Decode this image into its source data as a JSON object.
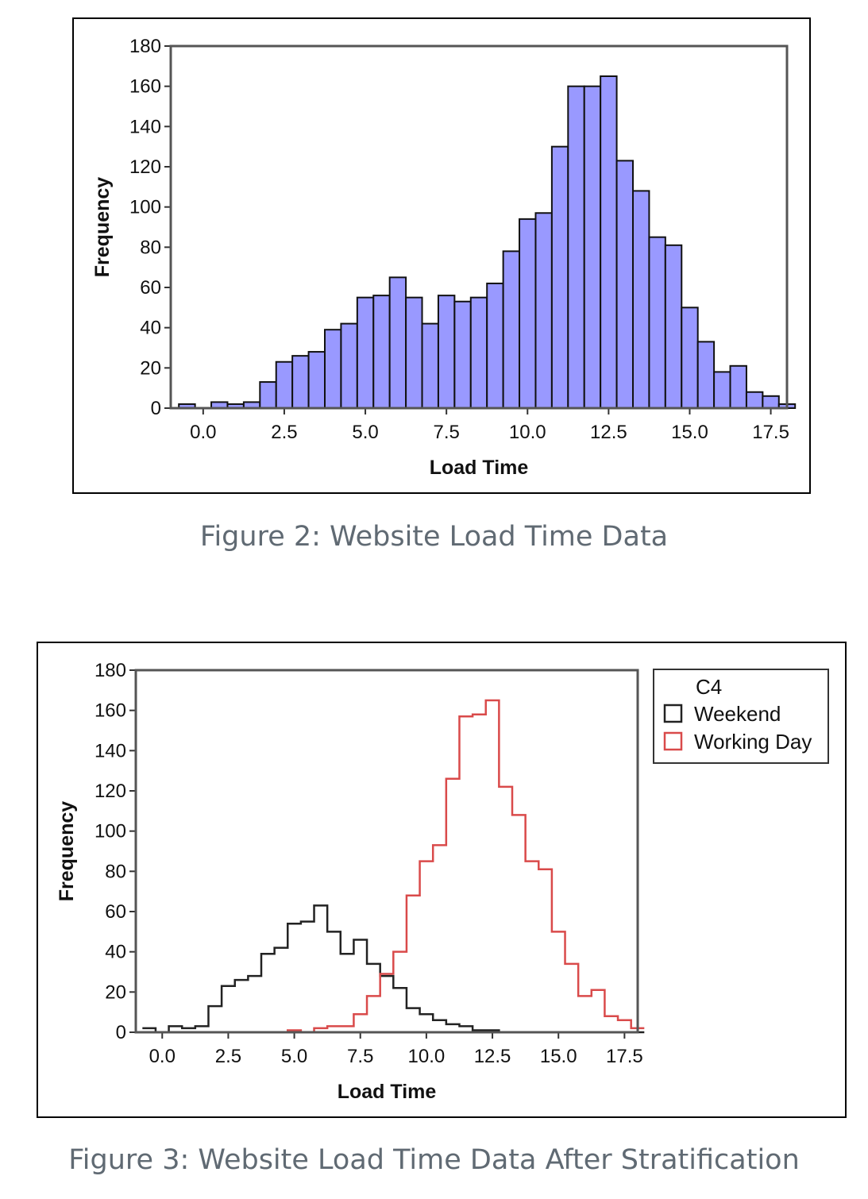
{
  "figures": [
    {
      "caption": "Figure 2: Website Load Time Data",
      "chart_data": {
        "type": "bar",
        "title": "",
        "xlabel": "Load Time",
        "ylabel": "Frequency",
        "bin_width": 0.5,
        "bin_starts": [
          -0.75,
          -0.25,
          0.25,
          0.75,
          1.25,
          1.75,
          2.25,
          2.75,
          3.25,
          3.75,
          4.25,
          4.75,
          5.25,
          5.75,
          6.25,
          6.75,
          7.25,
          7.75,
          8.25,
          8.75,
          9.25,
          9.75,
          10.25,
          10.75,
          11.25,
          11.75,
          12.25,
          12.75,
          13.25,
          13.75,
          14.25,
          14.75,
          15.25,
          15.75,
          16.25,
          16.75,
          17.25,
          17.75
        ],
        "values": [
          2,
          0,
          3,
          2,
          3,
          13,
          23,
          26,
          28,
          39,
          42,
          55,
          56,
          65,
          55,
          42,
          56,
          53,
          55,
          62,
          78,
          94,
          97,
          130,
          160,
          160,
          165,
          123,
          108,
          85,
          81,
          50,
          33,
          18,
          21,
          8,
          6,
          2
        ],
        "xlim": [
          -1.0,
          18.0
        ],
        "ylim": [
          0,
          180
        ],
        "xticks": [
          "0.0",
          "2.5",
          "5.0",
          "7.5",
          "10.0",
          "12.5",
          "15.0",
          "17.5"
        ],
        "yticks": [
          "0",
          "20",
          "40",
          "60",
          "80",
          "100",
          "120",
          "140",
          "160",
          "180"
        ],
        "bar_color": "#9999ff",
        "grid": false
      }
    },
    {
      "caption": "Figure 3: Website Load Time Data After Stratification",
      "chart_data": {
        "type": "line",
        "title": "",
        "xlabel": "Load Time",
        "ylabel": "Frequency",
        "bin_width": 0.5,
        "bin_starts": [
          -0.75,
          -0.25,
          0.25,
          0.75,
          1.25,
          1.75,
          2.25,
          2.75,
          3.25,
          3.75,
          4.25,
          4.75,
          5.25,
          5.75,
          6.25,
          6.75,
          7.25,
          7.75,
          8.25,
          8.75,
          9.25,
          9.75,
          10.25,
          10.75,
          11.25,
          11.75,
          12.25,
          12.75,
          13.25,
          13.75,
          14.25,
          14.75,
          15.25,
          15.75,
          16.25,
          16.75,
          17.25,
          17.75
        ],
        "series": [
          {
            "name": "Weekend",
            "color": "#222222",
            "values": [
              2,
              0,
              3,
              2,
              3,
              13,
              23,
              26,
              28,
              39,
              42,
              54,
              55,
              63,
              50,
              39,
              46,
              34,
              28,
              22,
              12,
              9,
              6,
              4,
              3,
              1,
              1,
              0,
              0,
              0,
              0,
              0,
              0,
              0,
              0,
              0,
              0,
              0
            ]
          },
          {
            "name": "Working Day",
            "color": "#d94a4a",
            "values": [
              0,
              0,
              0,
              0,
              0,
              0,
              0,
              0,
              0,
              0,
              0,
              1,
              0,
              2,
              3,
              3,
              9,
              18,
              29,
              40,
              68,
              85,
              93,
              126,
              157,
              158,
              165,
              122,
              108,
              85,
              81,
              50,
              34,
              18,
              21,
              8,
              6,
              2
            ]
          }
        ],
        "legend": {
          "title": "C4",
          "position": "right"
        },
        "xlim": [
          -1.0,
          18.0
        ],
        "ylim": [
          0,
          180
        ],
        "xticks": [
          "0.0",
          "2.5",
          "5.0",
          "7.5",
          "10.0",
          "12.5",
          "15.0",
          "17.5"
        ],
        "yticks": [
          "0",
          "20",
          "40",
          "60",
          "80",
          "100",
          "120",
          "140",
          "160",
          "180"
        ],
        "grid": false
      }
    }
  ]
}
